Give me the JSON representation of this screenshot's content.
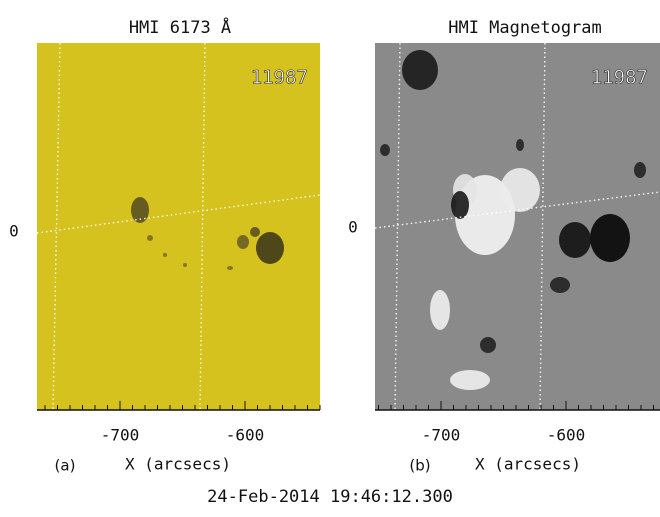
{
  "panels": [
    {
      "title": "HMI 6173 Å",
      "region": "11987",
      "y_label": "0",
      "x_ticks": [
        "-700",
        "-600"
      ],
      "tag": "(a)",
      "x_label": "X (arcsecs)"
    },
    {
      "title": "HMI Magnetogram",
      "region": "11987",
      "y_label": "0",
      "x_ticks": [
        "-700",
        "-600"
      ],
      "tag": "(b)",
      "x_label": "X (arcsecs)"
    }
  ],
  "timestamp": "24-Feb-2014 19:46:12.300"
}
